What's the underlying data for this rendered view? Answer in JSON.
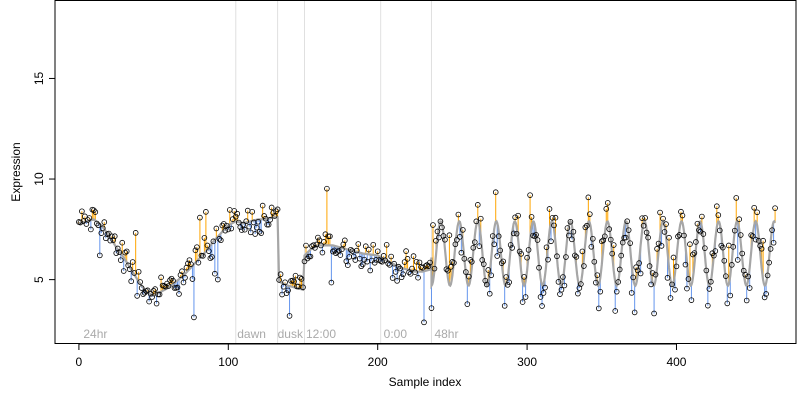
{
  "chart_data": {
    "type": "scatter",
    "title": "",
    "xlabel": "Sample index",
    "ylabel": "Expression",
    "xlim": [
      -16,
      480
    ],
    "ylim": [
      1.8,
      18.9
    ],
    "xticks": [
      0,
      100,
      200,
      300,
      400
    ],
    "yticks": [
      5,
      10,
      15
    ],
    "grid": false,
    "legend": "none",
    "region_boundaries": [
      105,
      133,
      151,
      202,
      236
    ],
    "regions": [
      {
        "label": "24hr",
        "x": 3
      },
      {
        "label": "dawn",
        "x": 106
      },
      {
        "label": "dusk",
        "x": 133
      },
      {
        "label": "12:00",
        "x": 152
      },
      {
        "label": "0:00",
        "x": 204
      },
      {
        "label": "48hr",
        "x": 238
      }
    ],
    "fitted_line": {
      "color": "#a6a6a6",
      "x": [
        0,
        5,
        10,
        15,
        20,
        25,
        30,
        35,
        40,
        45,
        50,
        55,
        60,
        65,
        70,
        75,
        80,
        85,
        90,
        95,
        100,
        105,
        110,
        115,
        120,
        125,
        130,
        133,
        134,
        140,
        145,
        150,
        151,
        155,
        160,
        170,
        180,
        190,
        200,
        205,
        210,
        215,
        220,
        225,
        230,
        235,
        236
      ],
      "y": [
        7.8,
        7.9,
        8.0,
        7.7,
        7.2,
        6.6,
        6.1,
        5.5,
        4.9,
        4.4,
        4.2,
        4.4,
        4.6,
        4.9,
        5.2,
        5.6,
        6.0,
        6.4,
        6.9,
        7.3,
        7.7,
        7.9,
        7.8,
        7.9,
        8.0,
        8.0,
        8.1,
        8.1,
        4.9,
        4.7,
        4.6,
        4.5,
        6.2,
        6.5,
        6.7,
        6.7,
        6.5,
        6.3,
        6.2,
        6.0,
        5.8,
        5.6,
        5.5,
        5.4,
        5.4,
        5.5,
        6.1
      ],
      "oscillation": {
        "x_start": 236,
        "x_end": 466,
        "mean": 6.3,
        "amplitude": 1.6,
        "period": 12.4,
        "step": 0.5
      }
    },
    "points": {
      "seed": 12345,
      "stickup_color": "#ffa500",
      "stickdown_color": "#6495ed",
      "note": "one open circle per sample index 0-466; y = fitted line plus residual"
    }
  }
}
